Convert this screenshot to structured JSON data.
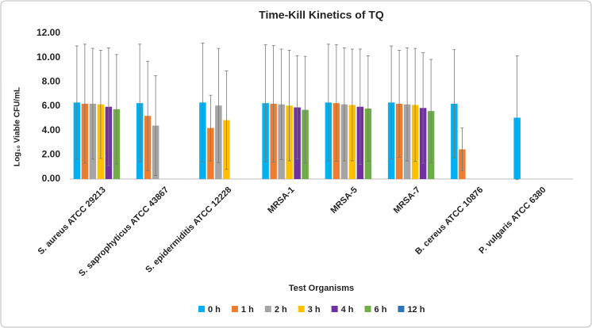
{
  "chart_data": {
    "type": "bar",
    "title": "Time-Kill Kinetics of TQ",
    "y_label": "Log₁₀ Viable CFU/mL",
    "x_label": "Test Organisms",
    "categories": [
      "S. aureus ATCC 29213",
      "S. saprophyticus ATCC 43867",
      "S. epidermiditis ATCC 12228",
      "MRSA-1",
      "MRSA-5",
      "MRSA-7",
      "B. cereus ATCC 10876",
      "P. vulgaris ATCC 6380"
    ],
    "series": [
      {
        "name": "0 h",
        "color": "#00b0f0",
        "values": [
          6.3,
          6.25,
          6.3,
          6.25,
          6.3,
          6.3,
          6.2,
          5.05
        ],
        "errors": [
          4.66,
          4.85,
          4.9,
          4.8,
          4.8,
          4.65,
          4.45,
          5.1
        ]
      },
      {
        "name": "1 h",
        "color": "#ed7d31",
        "values": [
          6.2,
          5.2,
          4.2,
          6.2,
          6.25,
          6.2,
          2.45,
          null
        ],
        "errors": [
          4.9,
          4.5,
          2.7,
          4.8,
          4.8,
          4.4,
          1.75,
          null
        ]
      },
      {
        "name": "2 h",
        "color": "#a5a5a5",
        "values": [
          6.2,
          4.4,
          6.05,
          6.15,
          6.15,
          6.15,
          null,
          null
        ],
        "errors": [
          4.56,
          4.1,
          4.7,
          4.55,
          4.65,
          4.65,
          null,
          null
        ]
      },
      {
        "name": "3 h",
        "color": "#ffc000",
        "values": [
          6.15,
          null,
          4.85,
          6.05,
          6.1,
          6.1,
          null,
          null
        ],
        "errors": [
          4.45,
          null,
          4.05,
          4.55,
          4.6,
          4.65,
          null,
          null
        ]
      },
      {
        "name": "4 h",
        "color": "#7030a0",
        "values": [
          5.95,
          null,
          null,
          5.9,
          5.95,
          5.85,
          null,
          null
        ],
        "errors": [
          4.85,
          null,
          null,
          4.25,
          4.75,
          4.55,
          null,
          null
        ]
      },
      {
        "name": "6 h",
        "color": "#70ad47",
        "values": [
          5.75,
          null,
          null,
          5.7,
          5.8,
          5.6,
          null,
          null
        ],
        "errors": [
          4.5,
          null,
          null,
          4.4,
          4.35,
          4.25,
          null,
          null
        ]
      },
      {
        "name": "12 h",
        "color": "#2e75b6",
        "values": [
          null,
          null,
          null,
          null,
          null,
          null,
          null,
          null
        ],
        "errors": [
          null,
          null,
          null,
          null,
          null,
          null,
          null,
          null
        ]
      }
    ],
    "ylim": [
      0,
      12
    ],
    "yticks": [
      {
        "value": 0,
        "label": "0.00"
      },
      {
        "value": 2,
        "label": "2.00"
      },
      {
        "value": 4,
        "label": "4.00"
      },
      {
        "value": 6,
        "label": "6.00"
      },
      {
        "value": 8,
        "label": "8.00"
      },
      {
        "value": 10,
        "label": "10.00"
      },
      {
        "value": 12,
        "label": "12.00"
      }
    ],
    "grid": false,
    "legend": "bottom"
  }
}
